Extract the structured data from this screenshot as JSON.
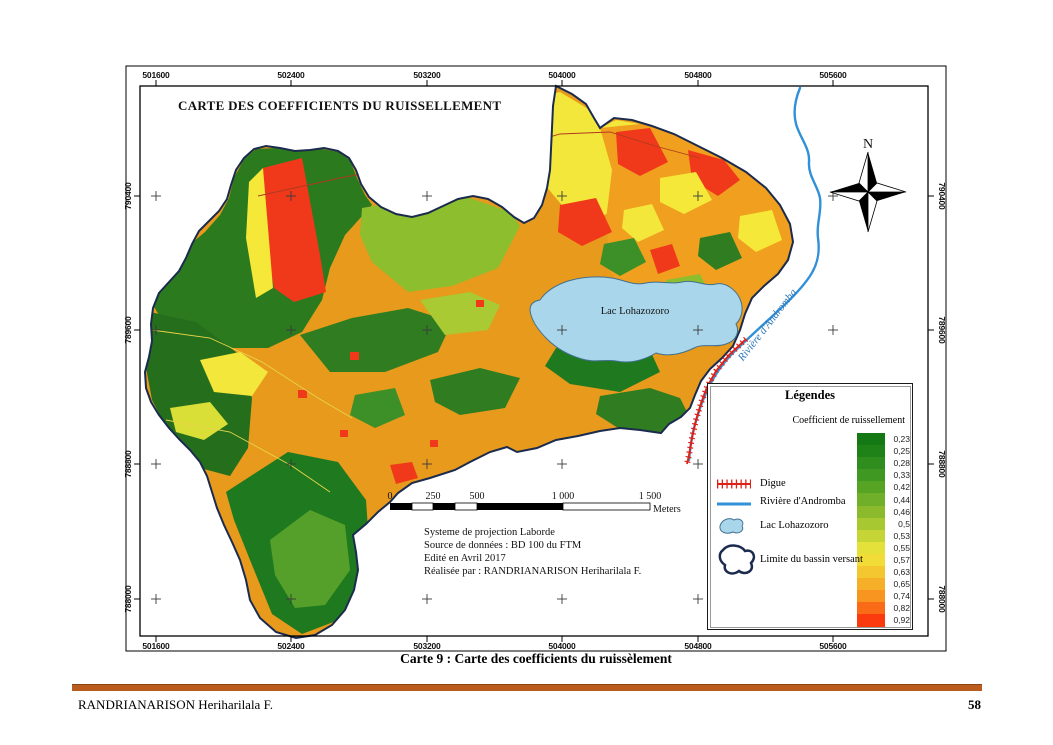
{
  "map": {
    "title": "CARTE DES COEFFICIENTS DU RUISSELLEMENT",
    "north_label": "N",
    "x_tick_labels": [
      "501600",
      "502400",
      "503200",
      "504000",
      "504800",
      "505600"
    ],
    "y_tick_labels": [
      "790400",
      "789600",
      "788800",
      "788000"
    ],
    "lake_label": "Lac Lohazozoro",
    "river_label": "Rivière d'Andromba",
    "scale_bar": {
      "tick_labels": [
        "0",
        "250",
        "500",
        "1 000",
        "1 500"
      ],
      "unit": "Meters"
    },
    "credits": [
      "Systeme de projection Laborde",
      "Source de données : BD 100 du FTM",
      "Edité en Avril 2017",
      "Réalisée par : RANDRIANARISON Heriharilala F."
    ],
    "colors": {
      "river": "#3090D8",
      "lake": "#A9D6EA",
      "digue": "#E02015",
      "basin_outline": "#1B2B4E",
      "base_orange": "#E79A1C"
    }
  },
  "legend": {
    "title": "Légendes",
    "ramp_title": "Coefficient de ruissellement",
    "ramp": [
      {
        "value": "0,23",
        "color": "#147815"
      },
      {
        "value": "0,25",
        "color": "#1E8219"
      },
      {
        "value": "0,28",
        "color": "#2E8D1D"
      },
      {
        "value": "0,33",
        "color": "#3F9821"
      },
      {
        "value": "0,42",
        "color": "#57A425"
      },
      {
        "value": "0,44",
        "color": "#70AF29"
      },
      {
        "value": "0,46",
        "color": "#8BBB2D"
      },
      {
        "value": "0,5",
        "color": "#A8C832"
      },
      {
        "value": "0,53",
        "color": "#C6D536"
      },
      {
        "value": "0,55",
        "color": "#E4E13A"
      },
      {
        "value": "0,57",
        "color": "#F2DC37"
      },
      {
        "value": "0,63",
        "color": "#F4C62F"
      },
      {
        "value": "0,65",
        "color": "#F6AF28"
      },
      {
        "value": "0,74",
        "color": "#F89420"
      },
      {
        "value": "0,82",
        "color": "#FA6B17"
      },
      {
        "value": "0,92",
        "color": "#FB3B0E"
      }
    ],
    "items": [
      {
        "label": "Digue"
      },
      {
        "label": "Rivière d'Andromba"
      },
      {
        "label": "Lac Lohazozoro"
      },
      {
        "label": "Limite du bassin versant"
      }
    ]
  },
  "page": {
    "caption": "Carte 9 : Carte des coefficients du ruissèlement",
    "footer": {
      "author": "RANDRIANARISON Heriharilala F.",
      "page_number": "58",
      "bar_color": "#B95C1E"
    }
  }
}
